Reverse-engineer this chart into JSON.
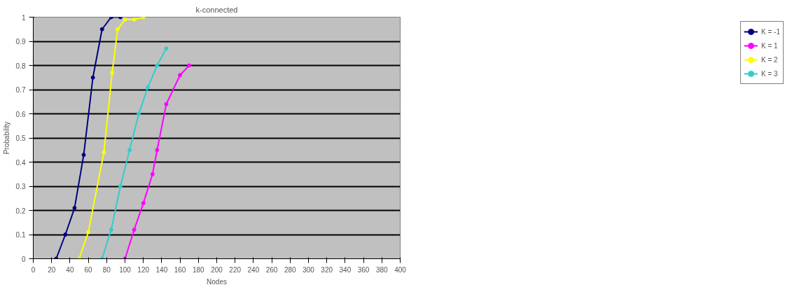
{
  "chart_data": {
    "type": "line",
    "title": "k-connected",
    "xlabel": "Nodes",
    "ylabel": "Probability",
    "xlim": [
      0,
      400
    ],
    "xticks": [
      0,
      20,
      40,
      60,
      80,
      100,
      120,
      140,
      160,
      180,
      200,
      220,
      240,
      260,
      280,
      300,
      320,
      340,
      360,
      380,
      400
    ],
    "ylim": [
      0,
      1
    ],
    "yticks": [
      0,
      0.1,
      0.2,
      0.3,
      0.4,
      0.5,
      0.6,
      0.7,
      0.8,
      0.9,
      1
    ],
    "grid": "y",
    "legend": "right",
    "marker": "circle",
    "series": [
      {
        "name": "K = -1",
        "color": "#000080",
        "x": [
          25,
          35,
          45,
          55,
          65,
          75,
          85,
          95
        ],
        "values": [
          0,
          0.1,
          0.21,
          0.43,
          0.75,
          0.95,
          1,
          1
        ]
      },
      {
        "name": "K = 1",
        "color": "#ff00ff",
        "x": [
          100,
          110,
          120,
          130,
          135,
          145,
          160,
          170
        ],
        "values": [
          0,
          0.12,
          0.23,
          0.35,
          0.45,
          0.64,
          0.76,
          0.8
        ]
      },
      {
        "name": "K = 2",
        "color": "#ffff00",
        "x": [
          50,
          60,
          77,
          86,
          92,
          100,
          110,
          120
        ],
        "values": [
          0,
          0.11,
          0.44,
          0.77,
          0.95,
          0.99,
          0.99,
          1
        ]
      },
      {
        "name": "K = 3",
        "color": "#33cccc",
        "x": [
          75,
          85,
          95,
          105,
          115,
          125,
          135,
          145
        ],
        "values": [
          0,
          0.12,
          0.3,
          0.45,
          0.6,
          0.71,
          0.8,
          0.87
        ]
      }
    ]
  }
}
